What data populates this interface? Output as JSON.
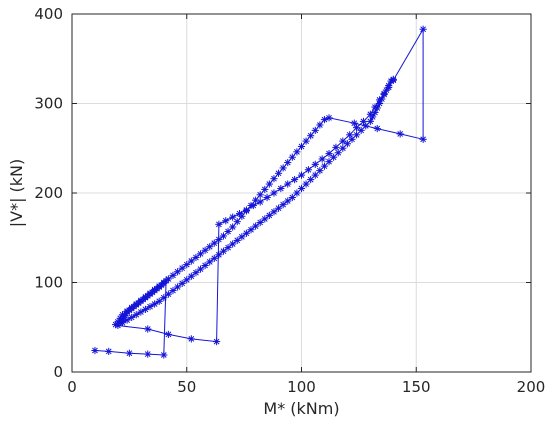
{
  "chart_data": {
    "type": "line",
    "xlabel": "M* (kNm)",
    "ylabel": "|V*| (kN)",
    "xlim": [
      0,
      200
    ],
    "ylim": [
      0,
      400
    ],
    "xticks": [
      0,
      50,
      100,
      150,
      200
    ],
    "yticks": [
      0,
      100,
      200,
      300,
      400
    ],
    "grid": true,
    "colors": {
      "series": "#1414d8",
      "axis": "#262626",
      "grid": "#dcdcdc",
      "background": "#ffffff"
    },
    "series": [
      {
        "values": [
          [
            10,
            24
          ],
          [
            16,
            23
          ],
          [
            25,
            21
          ],
          [
            33,
            20
          ],
          [
            40,
            19
          ],
          [
            41,
            102
          ],
          [
            40,
            99
          ],
          [
            39,
            97
          ],
          [
            38,
            95
          ],
          [
            37,
            93
          ],
          [
            36,
            91
          ],
          [
            35,
            89
          ],
          [
            34,
            87
          ],
          [
            33,
            85
          ],
          [
            32,
            83
          ],
          [
            31,
            81
          ],
          [
            30,
            79
          ],
          [
            29,
            77
          ],
          [
            28,
            75
          ],
          [
            27,
            73
          ],
          [
            26,
            71
          ],
          [
            25,
            69
          ],
          [
            24,
            67
          ],
          [
            23.5,
            65
          ],
          [
            23,
            63
          ],
          [
            22.5,
            61
          ],
          [
            22,
            59
          ],
          [
            21.5,
            57
          ],
          [
            21,
            55
          ],
          [
            20,
            52
          ],
          [
            33,
            48
          ],
          [
            42,
            42
          ],
          [
            52,
            37
          ],
          [
            63,
            34
          ],
          [
            64,
            165
          ],
          [
            67,
            169
          ],
          [
            70,
            173
          ],
          [
            73,
            177
          ],
          [
            76,
            181
          ],
          [
            79,
            186
          ],
          [
            82,
            190
          ],
          [
            85,
            195
          ],
          [
            88,
            200
          ],
          [
            91,
            205
          ],
          [
            94,
            210
          ],
          [
            97,
            215
          ],
          [
            100,
            220
          ],
          [
            103,
            226
          ],
          [
            106,
            232
          ],
          [
            109,
            238
          ],
          [
            112,
            244
          ],
          [
            115,
            251
          ],
          [
            118,
            258
          ],
          [
            121,
            265
          ],
          [
            124,
            273
          ],
          [
            127,
            280
          ],
          [
            130,
            288
          ],
          [
            132,
            296
          ],
          [
            134,
            304
          ],
          [
            136,
            311
          ],
          [
            138,
            318
          ],
          [
            140,
            326
          ],
          [
            153,
            383
          ],
          [
            153,
            260
          ],
          [
            143,
            266
          ],
          [
            133,
            272
          ],
          [
            123,
            278
          ],
          [
            112,
            284
          ],
          [
            110,
            282
          ],
          [
            108,
            276
          ],
          [
            106,
            270
          ],
          [
            104,
            264
          ],
          [
            102,
            258
          ],
          [
            100,
            252
          ],
          [
            98,
            246
          ],
          [
            96,
            240
          ],
          [
            94,
            234
          ],
          [
            92,
            228
          ],
          [
            90,
            222
          ],
          [
            88,
            216
          ],
          [
            86,
            210
          ],
          [
            84,
            204
          ],
          [
            82,
            198
          ],
          [
            80,
            192
          ],
          [
            78,
            186
          ],
          [
            76,
            180
          ],
          [
            74,
            174
          ],
          [
            72,
            168
          ],
          [
            70,
            162
          ],
          [
            68,
            157
          ],
          [
            66,
            152
          ],
          [
            64,
            148
          ],
          [
            62,
            144
          ],
          [
            60,
            140
          ],
          [
            58,
            136
          ],
          [
            56,
            132
          ],
          [
            54,
            128
          ],
          [
            52,
            124
          ],
          [
            50,
            120
          ],
          [
            48,
            116
          ],
          [
            46,
            112
          ],
          [
            44,
            108
          ],
          [
            42,
            104
          ],
          [
            40,
            100
          ],
          [
            38,
            96
          ],
          [
            36,
            92
          ],
          [
            34,
            88
          ],
          [
            32,
            84
          ],
          [
            30,
            80
          ],
          [
            28,
            76
          ],
          [
            26,
            72
          ],
          [
            24,
            68
          ],
          [
            22,
            64
          ],
          [
            21,
            60
          ],
          [
            20,
            56
          ],
          [
            19,
            53
          ],
          [
            22,
            55
          ],
          [
            24,
            58
          ],
          [
            26,
            61
          ],
          [
            28,
            64
          ],
          [
            30,
            67
          ],
          [
            32,
            70
          ],
          [
            34,
            73
          ],
          [
            36,
            76
          ],
          [
            38,
            79
          ],
          [
            40,
            83
          ],
          [
            42,
            87
          ],
          [
            44,
            91
          ],
          [
            46,
            95
          ],
          [
            48,
            99
          ],
          [
            50,
            103
          ],
          [
            52,
            107
          ],
          [
            54,
            111
          ],
          [
            56,
            115
          ],
          [
            58,
            119
          ],
          [
            60,
            123
          ],
          [
            62,
            127
          ],
          [
            64,
            131
          ],
          [
            66,
            135
          ],
          [
            68,
            139
          ],
          [
            70,
            143
          ],
          [
            72,
            147
          ],
          [
            74,
            151
          ],
          [
            76,
            155
          ],
          [
            78,
            159
          ],
          [
            80,
            163
          ],
          [
            82,
            167
          ],
          [
            84,
            171
          ],
          [
            86,
            175
          ],
          [
            88,
            179
          ],
          [
            90,
            183
          ],
          [
            92,
            187
          ],
          [
            94,
            191
          ],
          [
            96,
            195
          ],
          [
            98,
            200
          ],
          [
            100,
            205
          ],
          [
            102,
            210
          ],
          [
            104,
            215
          ],
          [
            106,
            220
          ],
          [
            108,
            225
          ],
          [
            110,
            230
          ],
          [
            112,
            235
          ],
          [
            114,
            240
          ],
          [
            116,
            245
          ],
          [
            118,
            250
          ],
          [
            120,
            255
          ],
          [
            122,
            260
          ],
          [
            124,
            265
          ],
          [
            126,
            270
          ],
          [
            128,
            275
          ],
          [
            130,
            280
          ],
          [
            131,
            285
          ],
          [
            132,
            290
          ],
          [
            133,
            295
          ],
          [
            134,
            300
          ],
          [
            135,
            305
          ],
          [
            136,
            310
          ],
          [
            137,
            315
          ],
          [
            138,
            320
          ],
          [
            139,
            325
          ],
          [
            140,
            327
          ]
        ],
        "marker": "*"
      }
    ]
  }
}
